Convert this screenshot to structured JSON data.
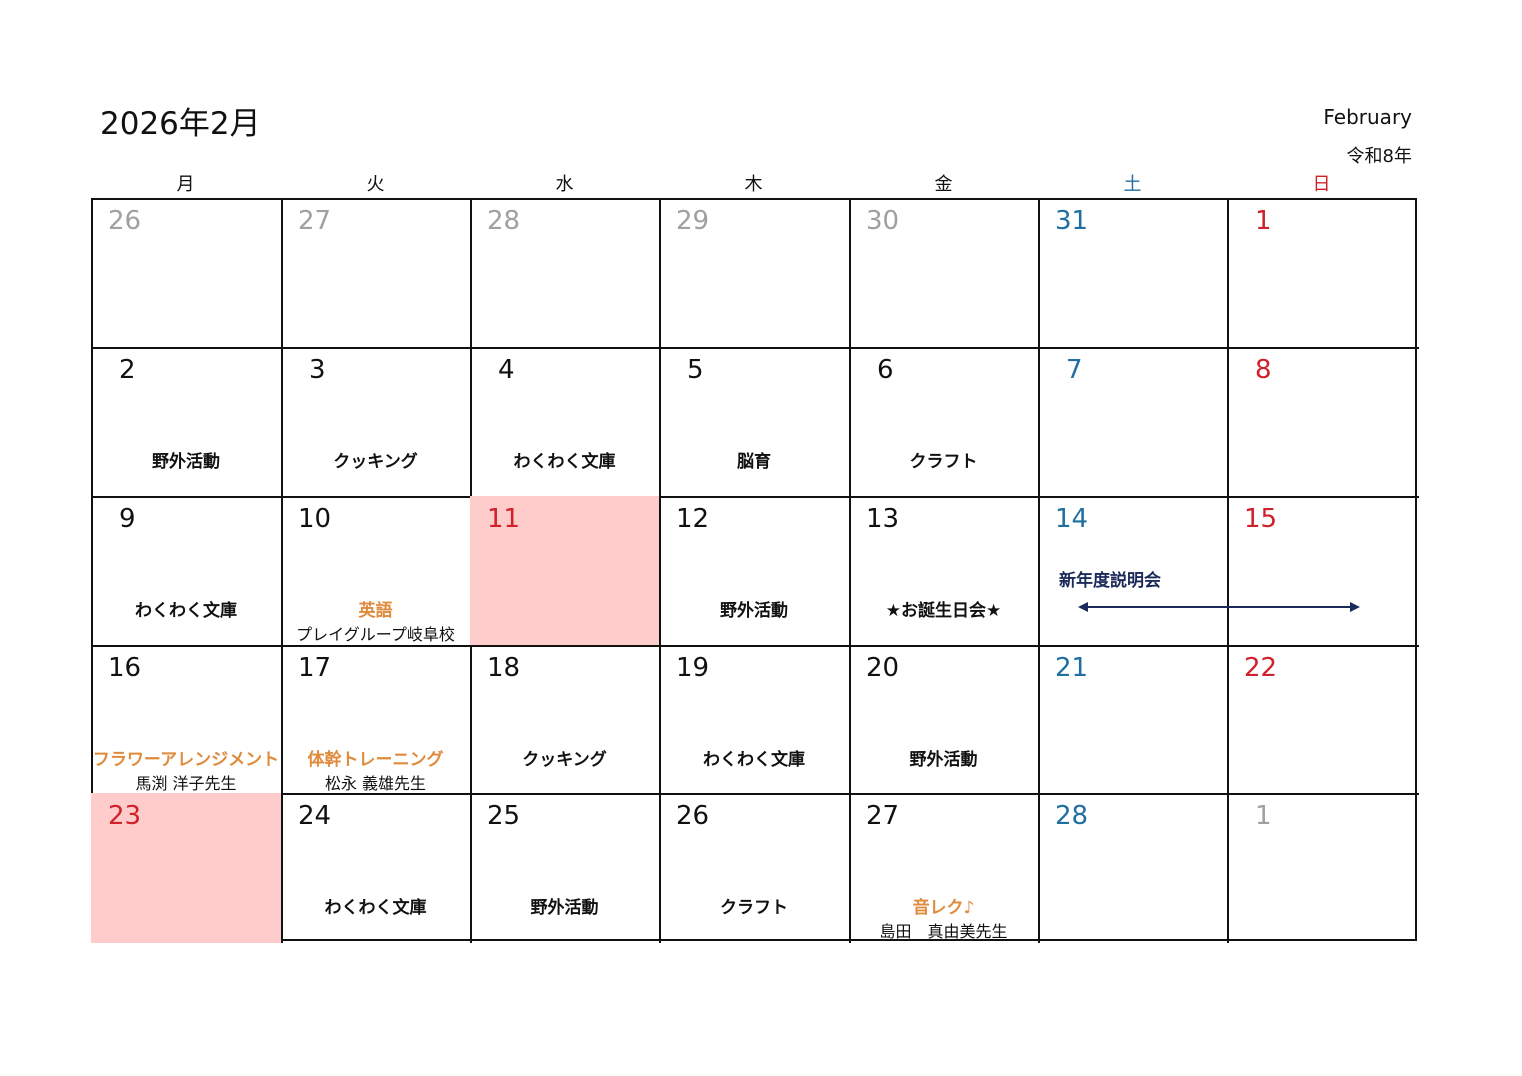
{
  "header": {
    "title": "2026年2月",
    "month_en": "February",
    "era": "令和8年"
  },
  "weekdays": [
    {
      "label": "月",
      "type": "normal"
    },
    {
      "label": "火",
      "type": "normal"
    },
    {
      "label": "水",
      "type": "normal"
    },
    {
      "label": "木",
      "type": "normal"
    },
    {
      "label": "金",
      "type": "normal"
    },
    {
      "label": "土",
      "type": "sat"
    },
    {
      "label": "日",
      "type": "sun"
    }
  ],
  "colors": {
    "normal": "#111111",
    "gray": "#a0a0a0",
    "sat": "#1f6fa0",
    "sun": "#d0202a",
    "event_orange": "#e08a3c",
    "highlight": "#ffcccc",
    "arrow": "#1a2a5a"
  },
  "weeks": [
    [
      {
        "day": "26",
        "type": "gray"
      },
      {
        "day": "27",
        "type": "gray"
      },
      {
        "day": "28",
        "type": "gray"
      },
      {
        "day": "29",
        "type": "gray"
      },
      {
        "day": "30",
        "type": "gray"
      },
      {
        "day": "31",
        "type": "sat"
      },
      {
        "day": "1",
        "type": "sun"
      }
    ],
    [
      {
        "day": "2",
        "type": "normal",
        "event": "野外活動"
      },
      {
        "day": "3",
        "type": "normal",
        "event": "クッキング"
      },
      {
        "day": "4",
        "type": "normal",
        "event": "わくわく文庫"
      },
      {
        "day": "5",
        "type": "normal",
        "event": "脳育"
      },
      {
        "day": "6",
        "type": "normal",
        "event": "クラフト"
      },
      {
        "day": "7",
        "type": "sat"
      },
      {
        "day": "8",
        "type": "sun"
      }
    ],
    [
      {
        "day": "9",
        "type": "normal",
        "event": "わくわく文庫"
      },
      {
        "day": "10",
        "type": "normal",
        "event": "英語",
        "event_color": "orange",
        "sub": "プレイグループ岐阜校"
      },
      {
        "day": "11",
        "type": "sun",
        "highlight": true
      },
      {
        "day": "12",
        "type": "normal",
        "event": "野外活動"
      },
      {
        "day": "13",
        "type": "normal",
        "event": "★お誕生日会★"
      },
      {
        "day": "14",
        "type": "sat"
      },
      {
        "day": "15",
        "type": "sun"
      }
    ],
    [
      {
        "day": "16",
        "type": "normal",
        "event": "フラワーアレンジメント",
        "event_color": "orange",
        "sub": "馬渕 洋子先生"
      },
      {
        "day": "17",
        "type": "normal",
        "event": "体幹トレーニング",
        "event_color": "orange",
        "sub": "松永 義雄先生"
      },
      {
        "day": "18",
        "type": "normal",
        "event": "クッキング"
      },
      {
        "day": "19",
        "type": "normal",
        "event": "わくわく文庫"
      },
      {
        "day": "20",
        "type": "normal",
        "event": "野外活動"
      },
      {
        "day": "21",
        "type": "sat"
      },
      {
        "day": "22",
        "type": "sun"
      }
    ],
    [
      {
        "day": "23",
        "type": "sun",
        "highlight": true
      },
      {
        "day": "24",
        "type": "normal",
        "event": "わくわく文庫"
      },
      {
        "day": "25",
        "type": "normal",
        "event": "野外活動"
      },
      {
        "day": "26",
        "type": "normal",
        "event": "クラフト"
      },
      {
        "day": "27",
        "type": "normal",
        "event": "音レク♪",
        "event_color": "orange",
        "sub": "島田　真由美先生"
      },
      {
        "day": "28",
        "type": "sat"
      },
      {
        "day": "1",
        "type": "gray"
      }
    ]
  ],
  "span_event": {
    "label": "新年度説明会",
    "days": "14-15"
  }
}
